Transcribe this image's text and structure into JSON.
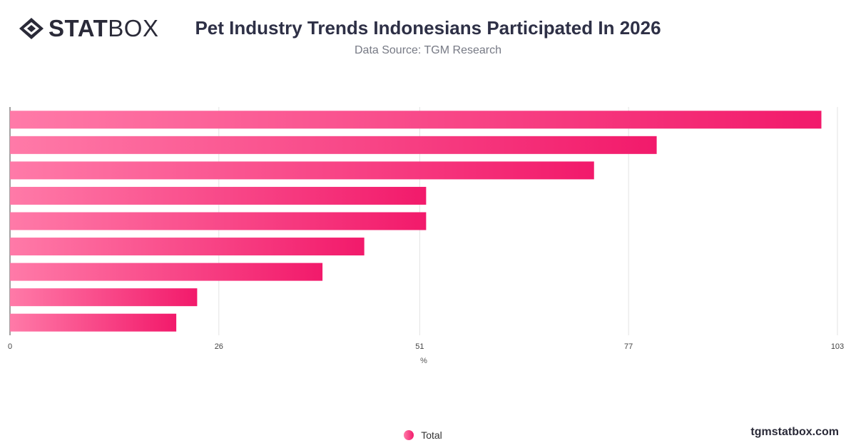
{
  "brand": {
    "logo_bold": "STAT",
    "logo_light": "BOX"
  },
  "header": {
    "title": "Pet Industry Trends Indonesians Participated In 2026",
    "subtitle": "Data Source: TGM Research"
  },
  "footer": {
    "site": "tgmstatbox.com"
  },
  "colors": {
    "bar_start": "#ff7aa8",
    "bar_end": "#f21a6b",
    "grid": "#e3e3e3",
    "axis": "#444444"
  },
  "chart_data": {
    "type": "bar",
    "orientation": "horizontal",
    "categories": [
      "",
      "",
      "",
      "",
      "",
      "",
      "",
      "",
      ""
    ],
    "series": [
      {
        "name": "Total",
        "values": [
          101,
          80.5,
          72.7,
          51.8,
          51.8,
          44.1,
          38.9,
          23.3,
          20.7
        ]
      }
    ],
    "xlabel": "%",
    "xlim": [
      0,
      103
    ],
    "ticks": [
      0,
      26,
      51,
      77,
      103
    ],
    "grid": true,
    "legend": "bottom-center"
  }
}
